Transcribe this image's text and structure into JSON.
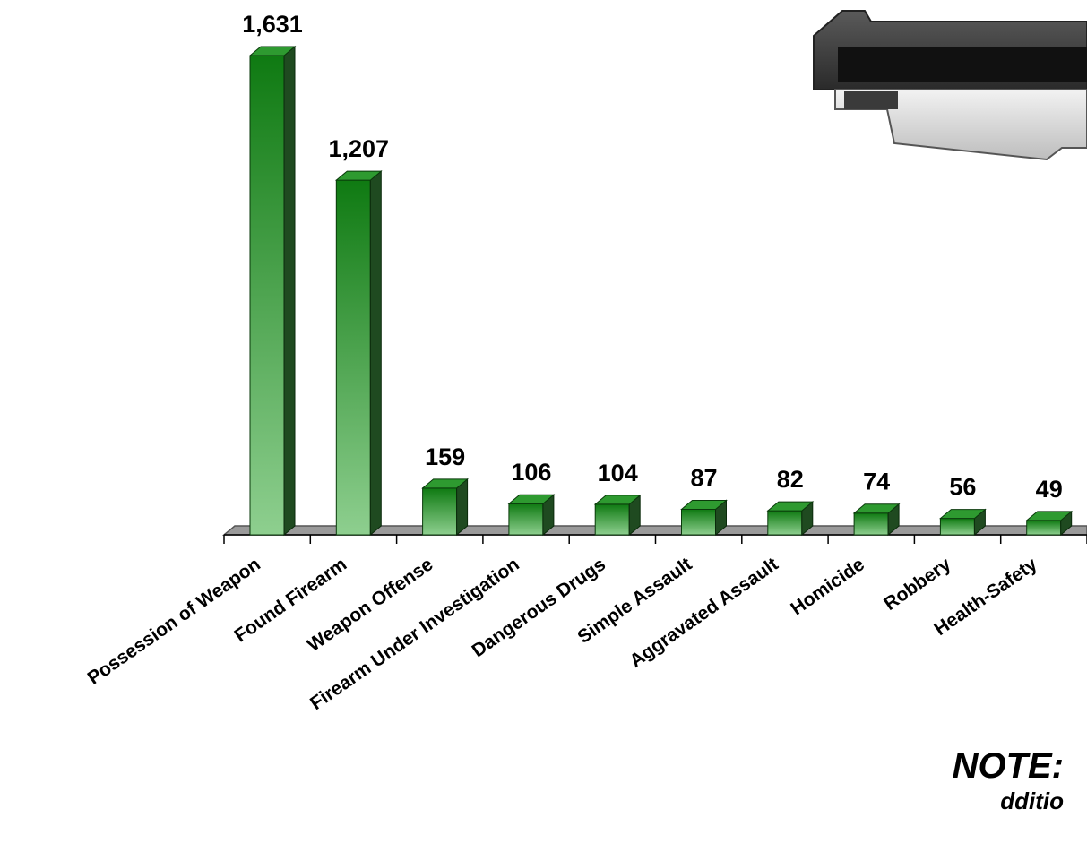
{
  "chart_data": {
    "type": "bar",
    "categories": [
      "Possession of Weapon",
      "Found Firearm",
      "Weapon Offense",
      "Firearm Under Investigation",
      "Dangerous Drugs",
      "Simple Assault",
      "Aggravated Assault",
      "Homicide",
      "Robbery",
      "Health-Safety"
    ],
    "values": [
      1631,
      1207,
      159,
      106,
      104,
      87,
      82,
      74,
      56,
      49
    ],
    "value_labels": [
      "1,631",
      "1,207",
      "159",
      "106",
      "104",
      "87",
      "82",
      "74",
      "56",
      "49"
    ],
    "bar_style": "3d",
    "grid": false,
    "legend": "none",
    "ylim": [
      0,
      1650
    ]
  },
  "colors": {
    "bar_top": "#0f7a12",
    "bar_bottom": "#8ecf8f",
    "bar_side": "#1f4a20",
    "bar_cap": "#2e9a30",
    "floor": "#9a9a9a"
  },
  "note": {
    "title": "NOTE:",
    "text": "dditio"
  },
  "decoration": {
    "icon": "handgun-icon"
  }
}
